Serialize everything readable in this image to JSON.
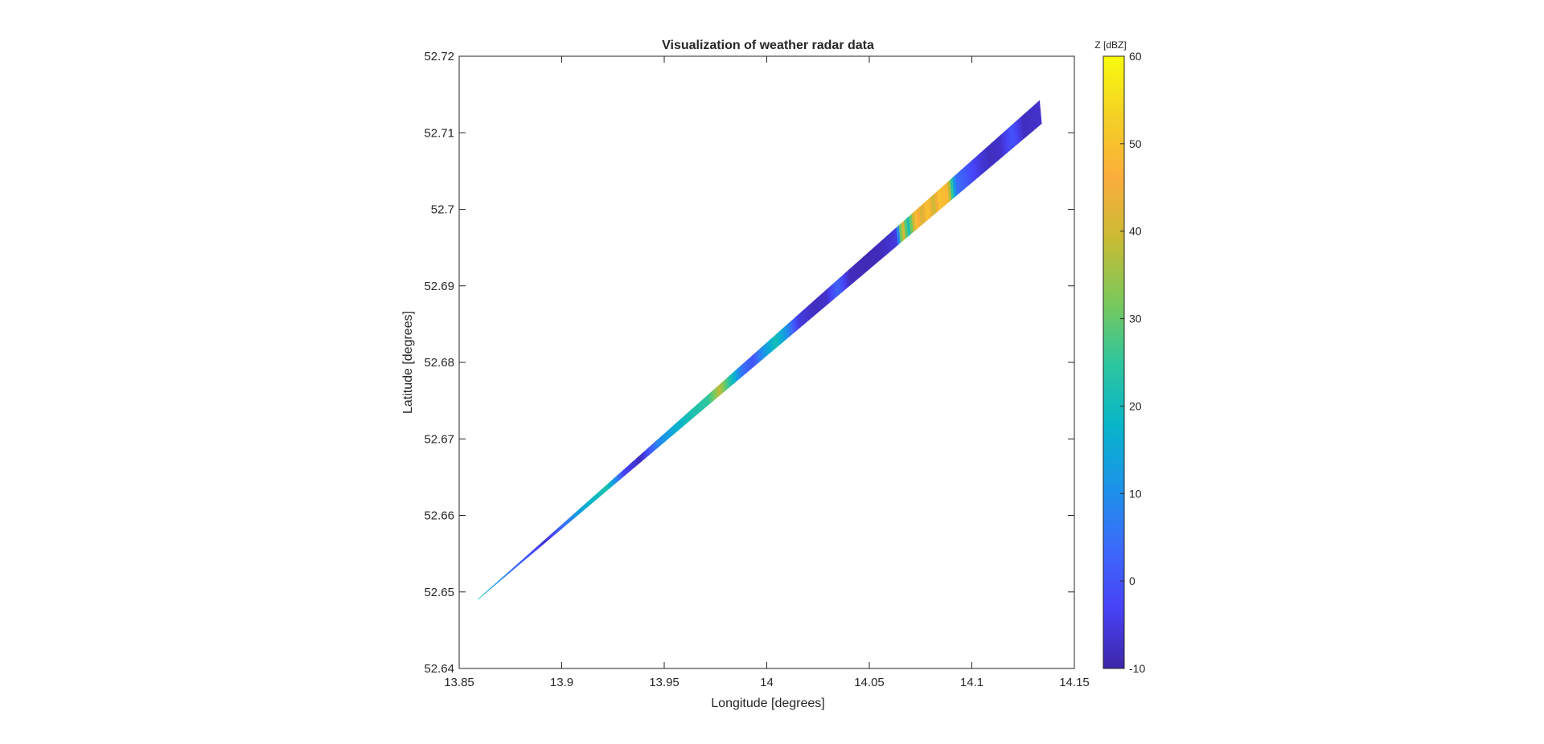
{
  "chart_data": {
    "type": "heatmap",
    "title": "Visualization of weather radar data",
    "xlabel": "Longitude [degrees]",
    "ylabel": "Latitude [degrees]",
    "xlim": [
      13.85,
      14.15
    ],
    "ylim": [
      52.64,
      52.72
    ],
    "xticks": [
      13.85,
      13.9,
      13.95,
      14,
      14.05,
      14.1,
      14.15
    ],
    "xtick_labels": [
      "13.85",
      "13.9",
      "13.95",
      "14",
      "14.05",
      "14.1",
      "14.15"
    ],
    "yticks": [
      52.64,
      52.65,
      52.66,
      52.67,
      52.68,
      52.69,
      52.7,
      52.71,
      52.72
    ],
    "ytick_labels": [
      "52.64",
      "52.65",
      "52.66",
      "52.67",
      "52.68",
      "52.69",
      "52.7",
      "52.71",
      "52.72"
    ],
    "grid": false,
    "colorbar": {
      "title": "Z [dBZ]",
      "clim": [
        -10,
        60
      ],
      "ticks": [
        -10,
        0,
        10,
        20,
        30,
        40,
        50,
        60
      ],
      "tick_labels": [
        "-10",
        "0",
        "10",
        "20",
        "30",
        "40",
        "50",
        "60"
      ],
      "colormap": "parula"
    },
    "beam": {
      "start": {
        "lon": 13.859,
        "lat": 52.649
      },
      "end_upper": {
        "lon": 14.133,
        "lat": 52.7142
      },
      "end_lower": {
        "lon": 14.134,
        "lat": 52.7112
      }
    },
    "reflectivity_profile": [
      [
        0.0,
        20
      ],
      [
        0.03,
        12
      ],
      [
        0.06,
        5
      ],
      [
        0.09,
        0
      ],
      [
        0.12,
        -7
      ],
      [
        0.14,
        0
      ],
      [
        0.17,
        10
      ],
      [
        0.2,
        18
      ],
      [
        0.23,
        22
      ],
      [
        0.26,
        -3
      ],
      [
        0.29,
        -8
      ],
      [
        0.32,
        8
      ],
      [
        0.35,
        16
      ],
      [
        0.38,
        22
      ],
      [
        0.41,
        25
      ],
      [
        0.43,
        38
      ],
      [
        0.45,
        22
      ],
      [
        0.47,
        5
      ],
      [
        0.49,
        0
      ],
      [
        0.51,
        12
      ],
      [
        0.53,
        21
      ],
      [
        0.55,
        10
      ],
      [
        0.57,
        -5
      ],
      [
        0.6,
        -8
      ],
      [
        0.62,
        -7
      ],
      [
        0.64,
        3
      ],
      [
        0.66,
        -8
      ],
      [
        0.69,
        -9
      ],
      [
        0.72,
        -8
      ],
      [
        0.745,
        -5
      ],
      [
        0.755,
        45
      ],
      [
        0.765,
        20
      ],
      [
        0.78,
        50
      ],
      [
        0.79,
        40
      ],
      [
        0.8,
        52
      ],
      [
        0.81,
        38
      ],
      [
        0.82,
        50
      ],
      [
        0.835,
        48
      ],
      [
        0.85,
        5
      ],
      [
        0.87,
        0
      ],
      [
        0.89,
        -5
      ],
      [
        0.91,
        -8
      ],
      [
        0.93,
        -7
      ],
      [
        0.95,
        0
      ],
      [
        0.97,
        -8
      ],
      [
        1.0,
        -7
      ]
    ]
  }
}
